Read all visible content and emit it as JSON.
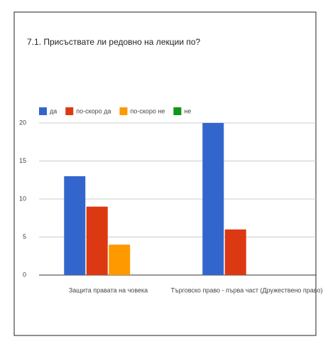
{
  "chart_data": {
    "type": "bar",
    "title": "7.1. Присъствате ли редовно на лекции по?",
    "categories": [
      "Защита правата на човека",
      "Търговско право - първа част (Дружествено право)"
    ],
    "series": [
      {
        "name": "да",
        "color": "#3366cc",
        "values": [
          13,
          20
        ]
      },
      {
        "name": "по-скоро да",
        "color": "#dc3912",
        "values": [
          9,
          6
        ]
      },
      {
        "name": "по-скоро не",
        "color": "#ff9900",
        "values": [
          4,
          0
        ]
      },
      {
        "name": "не",
        "color": "#109618",
        "values": [
          0,
          0
        ]
      }
    ],
    "ylim": [
      0,
      20
    ],
    "yticks": [
      0,
      5,
      10,
      15,
      20
    ],
    "grid": true,
    "legend": "top"
  }
}
